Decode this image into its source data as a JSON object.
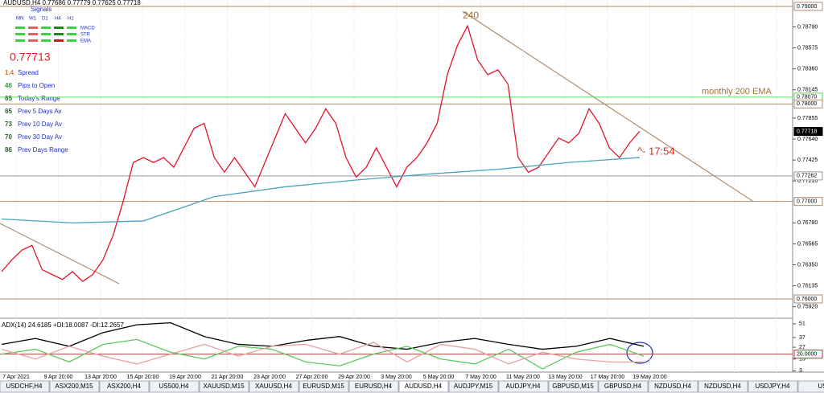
{
  "header": {
    "symbol_line": "AUDUSD,H4 0.77686 0.77779 0.77625 0.77718",
    "signals_title": "Signals",
    "timeframes": [
      "MN",
      "W1",
      "D1",
      "H4",
      "H1"
    ],
    "signal_rows": [
      "MACD",
      "STR",
      "EMA"
    ]
  },
  "stats": {
    "price": "0.77713",
    "rows": [
      {
        "value": "1.4",
        "label": "Spread"
      },
      {
        "value": "46",
        "label": "Pips to Open"
      },
      {
        "value": "65",
        "label": "Today's Range"
      },
      {
        "value": "65",
        "label": "Prev 5 Days Av"
      },
      {
        "value": "73",
        "label": "Prev 10 Day Av"
      },
      {
        "value": "70",
        "label": "Prev 30 Day Av"
      },
      {
        "value": "86",
        "label": "Prev Days Range"
      }
    ]
  },
  "chart_data": [
    {
      "type": "line",
      "ylim": [
        0.75802,
        0.79066
      ],
      "yticks": [
        {
          "value": 0.7879,
          "label": "0.78790"
        },
        {
          "value": 0.78575,
          "label": "0.78575"
        },
        {
          "value": 0.7836,
          "label": "0.78360"
        },
        {
          "value": 0.78145,
          "label": "0.78145"
        },
        {
          "value": 0.77855,
          "label": "0.77855"
        },
        {
          "value": 0.7764,
          "label": "0.77640"
        },
        {
          "value": 0.77425,
          "label": "0.77425"
        },
        {
          "value": 0.7721,
          "label": "0.77210"
        },
        {
          "value": 0.7678,
          "label": "0.76780"
        },
        {
          "value": 0.76565,
          "label": "0.76565"
        },
        {
          "value": 0.7635,
          "label": "0.76350"
        },
        {
          "value": 0.76135,
          "label": "0.76135"
        },
        {
          "value": 0.7592,
          "label": "0.75920"
        }
      ],
      "levels": [
        {
          "value": 0.79,
          "label": "0.79000",
          "color": "#b08a6a"
        },
        {
          "value": 0.7807,
          "label": "0.78070",
          "color": "#5ad65a"
        },
        {
          "value": 0.78,
          "label": "0.78000",
          "color": "#b08a6a"
        },
        {
          "value": 0.77718,
          "label": "0.77718",
          "color": "#000000"
        },
        {
          "value": 0.77262,
          "label": "0.77262",
          "color": "#9a9a9a"
        },
        {
          "value": 0.77,
          "label": "0.77000",
          "color": "#b08a6a"
        },
        {
          "value": 0.76,
          "label": "0.76000",
          "color": "#b08a6a"
        }
      ],
      "series": [
        {
          "name": "AUDUSD",
          "color": "#e0142c",
          "values": [
            0.7628,
            0.764,
            0.765,
            0.7655,
            0.763,
            0.7625,
            0.762,
            0.7628,
            0.7618,
            0.7625,
            0.764,
            0.7665,
            0.77,
            0.774,
            0.7745,
            0.774,
            0.7745,
            0.7735,
            0.7755,
            0.7775,
            0.778,
            0.7745,
            0.773,
            0.7745,
            0.773,
            0.7715,
            0.774,
            0.7765,
            0.779,
            0.7775,
            0.776,
            0.7775,
            0.7795,
            0.778,
            0.7745,
            0.7725,
            0.7735,
            0.7755,
            0.7735,
            0.7715,
            0.7735,
            0.7745,
            0.776,
            0.778,
            0.783,
            0.786,
            0.788,
            0.7845,
            0.783,
            0.7835,
            0.782,
            0.7745,
            0.773,
            0.7735,
            0.775,
            0.7765,
            0.776,
            0.777,
            0.7795,
            0.778,
            0.7755,
            0.7745,
            0.776,
            0.7772
          ]
        },
        {
          "name": "EMA",
          "color": "#4aa3b8",
          "values": [
            0.7682,
            0.7678,
            0.768,
            0.7705,
            0.7715,
            0.7722,
            0.7728,
            0.7733,
            0.774,
            0.7745
          ]
        }
      ],
      "annotations": [
        "240",
        "monthly 200 EMA",
        "^- 17:54"
      ],
      "xlabels": [
        "7 Apr 2021",
        "9 Apr 20:00",
        "13 Apr 20:00",
        "15 Apr 20:00",
        "19 Apr 20:00",
        "21 Apr 20:00",
        "23 Apr 20:00",
        "27 Apr 20:00",
        "29 Apr 20:00",
        "3 May 20:00",
        "5 May 20:00",
        "7 May 20:00",
        "11 May 20:00",
        "13 May 20:00",
        "17 May 20:00",
        "19 May 20:00"
      ]
    },
    {
      "type": "line",
      "title": "ADX(14) 24.6185 +DI:18.0087 -DI:12.2657",
      "ylim": [
        0,
        55
      ],
      "yticks": [
        51,
        37,
        27,
        15,
        3
      ],
      "level": {
        "value": 20,
        "label": "20.0000"
      },
      "series": [
        {
          "name": "ADX",
          "color": "#000000",
          "values": [
            30,
            36,
            28,
            42,
            50,
            52,
            38,
            30,
            28,
            34,
            38,
            28,
            25,
            32,
            36,
            30,
            25,
            28,
            36,
            28
          ]
        },
        {
          "name": "+DI",
          "color": "#5cc85c",
          "values": [
            20,
            25,
            12,
            30,
            35,
            22,
            15,
            28,
            25,
            12,
            8,
            20,
            28,
            15,
            10,
            25,
            5,
            22,
            30,
            18
          ]
        },
        {
          "name": "-DI",
          "color": "#e8a0a0",
          "values": [
            25,
            15,
            28,
            18,
            10,
            20,
            30,
            18,
            28,
            30,
            20,
            32,
            12,
            30,
            25,
            10,
            22,
            15,
            12,
            12
          ]
        }
      ]
    }
  ],
  "tabs": [
    "USDCHF,H4",
    "ASX200,M15",
    "ASX200,H4",
    "US500,H4",
    "XAUUSD,M15",
    "XAUUSD,H4",
    "EURUSD,M15",
    "EURUSD,H4",
    "AUDUSD,H4",
    "AUDJPY,M15",
    "AUDJPY,H4",
    "GBPUSD,M15",
    "GBPUSD,H4",
    "NZDUSD,H4",
    "NZDUSD,H4",
    "USDJPY,H4",
    "US"
  ]
}
